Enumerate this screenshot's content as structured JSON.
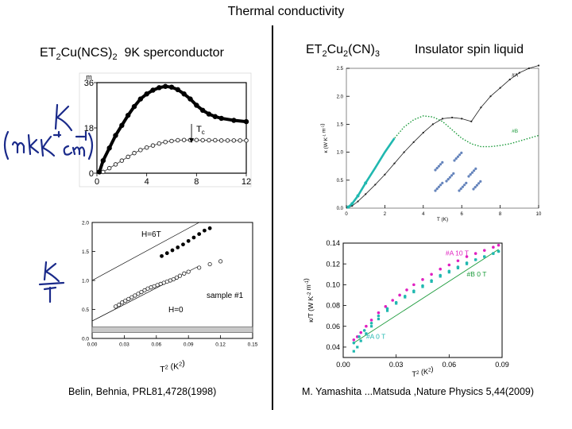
{
  "title": "Thermal conductivity",
  "left_header": {
    "prefix": "ET",
    "sub1": "2",
    "mid": "Cu(NCS)",
    "sub2": "2",
    "suffix": "  9K sperconductor"
  },
  "right_header": {
    "prefix": "ET",
    "sub1": "2",
    "mid": "Cu",
    "sub2": "2",
    "mid2": "(CN)",
    "sub3": "3",
    "suffix": "Insulator spin liquid"
  },
  "left_citation": "Belin, Behnia, PRL81,4728(1998)",
  "right_citation": "M. Yamashita ...Matsuda ,Nature Physics 5,44(2009)",
  "colors": {
    "accent": "#000000",
    "magenta": "#e020c0",
    "teal": "#20b8b0",
    "green": "#1a9a3a",
    "ink": "#1a2a8a"
  },
  "chart_data": [
    {
      "id": "top-left",
      "type": "scatter",
      "ylabel_unit": "m",
      "xticks": [
        "0",
        "4",
        "8",
        "12"
      ],
      "yticks": [
        "0",
        "18",
        "36"
      ],
      "xlim": [
        0,
        12
      ],
      "ylim": [
        0,
        36
      ],
      "annotation": "T",
      "annotation_sub": "c",
      "handwritten_label": "κ (mW K⁻¹ cm⁻¹)",
      "series": [
        {
          "values": [
            [
              0.2,
              0.5
            ],
            [
              0.5,
              5
            ],
            [
              1,
              10
            ],
            [
              1.5,
              15
            ],
            [
              2,
              19
            ],
            [
              2.5,
              23
            ],
            [
              3,
              26.5
            ],
            [
              3.5,
              29.5
            ],
            [
              4,
              31.5
            ],
            [
              4.5,
              33
            ],
            [
              5,
              34
            ],
            [
              5.5,
              34.5
            ],
            [
              6,
              34.2
            ],
            [
              6.5,
              33.2
            ],
            [
              7,
              31.5
            ],
            [
              7.5,
              29.5
            ],
            [
              8,
              27
            ],
            [
              8.5,
              25
            ],
            [
              9,
              23.5
            ],
            [
              9.5,
              22.5
            ],
            [
              10,
              21.8
            ],
            [
              11,
              21
            ],
            [
              12,
              20.5
            ]
          ]
        },
        {
          "values": [
            [
              0.5,
              0.5
            ],
            [
              1,
              2
            ],
            [
              1.5,
              3.5
            ],
            [
              2,
              5
            ],
            [
              2.5,
              6.5
            ],
            [
              3,
              8
            ],
            [
              3.5,
              9.2
            ],
            [
              4,
              10.2
            ],
            [
              4.5,
              11
            ],
            [
              5,
              11.8
            ],
            [
              5.5,
              12.4
            ],
            [
              6,
              12.8
            ],
            [
              6.5,
              13.1
            ],
            [
              7,
              13.2
            ],
            [
              7.5,
              13.2
            ],
            [
              8,
              13.2
            ],
            [
              8.5,
              13.1
            ],
            [
              9,
              13.1
            ],
            [
              9.5,
              13.1
            ],
            [
              10,
              13
            ],
            [
              10.5,
              13
            ],
            [
              11,
              13
            ],
            [
              11.5,
              13
            ],
            [
              12,
              13
            ]
          ]
        }
      ]
    },
    {
      "id": "bottom-left",
      "type": "scatter",
      "xlabel": "T",
      "xlabel_sup": "2",
      "xlabel_unit": " (K",
      "xlabel_unit_sup": "2",
      "xlabel_close": ")",
      "xticks": [
        "0.00",
        "0.03",
        "0.06",
        "0.09",
        "0.12",
        "0.15"
      ],
      "yticks": [
        "0.0",
        "0.5",
        "1.0",
        "1.5",
        "2.0"
      ],
      "xlim": [
        0,
        0.15
      ],
      "ylim": [
        0,
        2.0
      ],
      "labels": {
        "field_high": "H=6T",
        "field_zero": "H=0",
        "sample": "sample #1"
      },
      "handwritten_label": "κ / T",
      "series": [
        {
          "values": [
            [
              0.065,
              1.42
            ],
            [
              0.07,
              1.47
            ],
            [
              0.075,
              1.52
            ],
            [
              0.08,
              1.57
            ],
            [
              0.085,
              1.62
            ],
            [
              0.09,
              1.68
            ],
            [
              0.095,
              1.74
            ],
            [
              0.1,
              1.8
            ],
            [
              0.105,
              1.86
            ],
            [
              0.11,
              1.9
            ]
          ]
        },
        {
          "values": [
            [
              0.022,
              0.55
            ],
            [
              0.025,
              0.58
            ],
            [
              0.028,
              0.62
            ],
            [
              0.031,
              0.65
            ],
            [
              0.034,
              0.68
            ],
            [
              0.037,
              0.71
            ],
            [
              0.04,
              0.74
            ],
            [
              0.043,
              0.77
            ],
            [
              0.046,
              0.8
            ],
            [
              0.049,
              0.83
            ],
            [
              0.052,
              0.86
            ],
            [
              0.055,
              0.88
            ],
            [
              0.058,
              0.9
            ],
            [
              0.061,
              0.92
            ],
            [
              0.064,
              0.94
            ],
            [
              0.067,
              0.96
            ],
            [
              0.07,
              0.98
            ],
            [
              0.073,
              1.0
            ],
            [
              0.076,
              1.02
            ],
            [
              0.079,
              1.05
            ],
            [
              0.082,
              1.08
            ],
            [
              0.086,
              1.12
            ],
            [
              0.09,
              1.15
            ],
            [
              0.1,
              1.22
            ],
            [
              0.11,
              1.28
            ],
            [
              0.12,
              1.33
            ]
          ]
        }
      ],
      "fit_lines": [
        {
          "from": [
            0.0,
            1.0
          ],
          "to": [
            0.1,
            2.0
          ]
        },
        {
          "from": [
            0.0,
            0.3
          ],
          "to": [
            0.1,
            1.25
          ]
        }
      ],
      "band": [
        0.1,
        0.2
      ]
    },
    {
      "id": "top-right",
      "type": "line",
      "xlabel": "T (K)",
      "ylabel": "κ (W K",
      "ylabel_sup": "-1",
      "ylabel_close": " m",
      "ylabel_sup2": "-1",
      "ylabel_end": ")",
      "xticks": [
        "0",
        "2",
        "4",
        "6",
        "8",
        "10"
      ],
      "yticks": [
        "0.0",
        "0.5",
        "1.0",
        "1.5",
        "2.0",
        "2.5"
      ],
      "xlim": [
        0,
        10
      ],
      "ylim": [
        0,
        2.5
      ],
      "series": [
        {
          "name": "#A",
          "values": [
            [
              0.1,
              0.01
            ],
            [
              0.3,
              0.04
            ],
            [
              0.6,
              0.12
            ],
            [
              1,
              0.25
            ],
            [
              1.5,
              0.42
            ],
            [
              2,
              0.6
            ],
            [
              2.5,
              0.8
            ],
            [
              3,
              1.0
            ],
            [
              3.5,
              1.18
            ],
            [
              4,
              1.35
            ],
            [
              4.5,
              1.5
            ],
            [
              5,
              1.6
            ],
            [
              5.5,
              1.62
            ],
            [
              6,
              1.6
            ],
            [
              6.5,
              1.55
            ],
            [
              7,
              1.8
            ],
            [
              7.5,
              2.0
            ],
            [
              8,
              2.15
            ],
            [
              8.5,
              2.3
            ],
            [
              9,
              2.42
            ],
            [
              9.5,
              2.5
            ],
            [
              10,
              2.55
            ]
          ]
        },
        {
          "name": "#B",
          "values": [
            [
              0.1,
              0.02
            ],
            [
              0.3,
              0.08
            ],
            [
              0.6,
              0.22
            ],
            [
              1,
              0.45
            ],
            [
              1.5,
              0.72
            ],
            [
              2,
              1.0
            ],
            [
              2.5,
              1.25
            ],
            [
              3,
              1.45
            ],
            [
              3.5,
              1.58
            ],
            [
              4,
              1.65
            ],
            [
              4.5,
              1.63
            ],
            [
              5,
              1.55
            ],
            [
              5.5,
              1.4
            ],
            [
              6,
              1.25
            ],
            [
              6.5,
              1.15
            ],
            [
              7,
              1.1
            ],
            [
              7.5,
              1.1
            ],
            [
              8,
              1.12
            ],
            [
              8.5,
              1.15
            ],
            [
              9,
              1.2
            ],
            [
              9.5,
              1.25
            ],
            [
              10,
              1.3
            ]
          ]
        }
      ]
    },
    {
      "id": "bottom-right",
      "type": "scatter",
      "xlabel": "T",
      "xlabel_sup": "2",
      "xlabel_unit": " (K",
      "xlabel_unit_sup": "2",
      "xlabel_close": ")",
      "ylabel": "κ/T (W K",
      "ylabel_sup": "-2",
      "ylabel_close": " m",
      "ylabel_sup2": "-1",
      "ylabel_end": ")",
      "xticks": [
        "0.00",
        "0.03",
        "0.06",
        "0.09"
      ],
      "yticks": [
        "0.04",
        "0.06",
        "0.08",
        "0.10",
        "0.12",
        "0.14"
      ],
      "xlim": [
        0,
        0.09
      ],
      "ylim": [
        0.03,
        0.14
      ],
      "series": [
        {
          "name": "#A 10 T",
          "values": [
            [
              0.006,
              0.047
            ],
            [
              0.008,
              0.05
            ],
            [
              0.01,
              0.054
            ],
            [
              0.013,
              0.06
            ],
            [
              0.016,
              0.066
            ],
            [
              0.02,
              0.073
            ],
            [
              0.024,
              0.079
            ],
            [
              0.028,
              0.085
            ],
            [
              0.032,
              0.09
            ],
            [
              0.036,
              0.095
            ],
            [
              0.04,
              0.1
            ],
            [
              0.045,
              0.105
            ],
            [
              0.05,
              0.11
            ],
            [
              0.055,
              0.115
            ],
            [
              0.06,
              0.119
            ],
            [
              0.065,
              0.123
            ],
            [
              0.07,
              0.127
            ],
            [
              0.075,
              0.13
            ],
            [
              0.08,
              0.133
            ],
            [
              0.085,
              0.136
            ],
            [
              0.088,
              0.138
            ]
          ]
        },
        {
          "name": "#B 0 T",
          "values": [
            [
              0.006,
              0.044
            ],
            [
              0.009,
              0.05
            ],
            [
              0.012,
              0.056
            ],
            [
              0.016,
              0.063
            ],
            [
              0.02,
              0.07
            ],
            [
              0.025,
              0.077
            ],
            [
              0.03,
              0.083
            ],
            [
              0.035,
              0.089
            ],
            [
              0.04,
              0.094
            ],
            [
              0.045,
              0.099
            ],
            [
              0.05,
              0.104
            ],
            [
              0.055,
              0.109
            ],
            [
              0.06,
              0.113
            ],
            [
              0.065,
              0.117
            ],
            [
              0.07,
              0.121
            ],
            [
              0.075,
              0.124
            ],
            [
              0.08,
              0.127
            ],
            [
              0.085,
              0.13
            ],
            [
              0.088,
              0.132
            ]
          ]
        },
        {
          "name": "#A 0 T",
          "values": [
            [
              0.006,
              0.036
            ],
            [
              0.008,
              0.04
            ],
            [
              0.01,
              0.046
            ],
            [
              0.013,
              0.053
            ],
            [
              0.016,
              0.06
            ],
            [
              0.02,
              0.067
            ],
            [
              0.025,
              0.075
            ],
            [
              0.03,
              0.082
            ],
            [
              0.035,
              0.088
            ],
            [
              0.04,
              0.093
            ],
            [
              0.045,
              0.098
            ],
            [
              0.05,
              0.103
            ],
            [
              0.055,
              0.108
            ],
            [
              0.06,
              0.112
            ],
            [
              0.065,
              0.116
            ],
            [
              0.07,
              0.12
            ],
            [
              0.075,
              0.124
            ],
            [
              0.08,
              0.127
            ],
            [
              0.085,
              0.13
            ],
            [
              0.088,
              0.132
            ]
          ]
        }
      ]
    }
  ]
}
